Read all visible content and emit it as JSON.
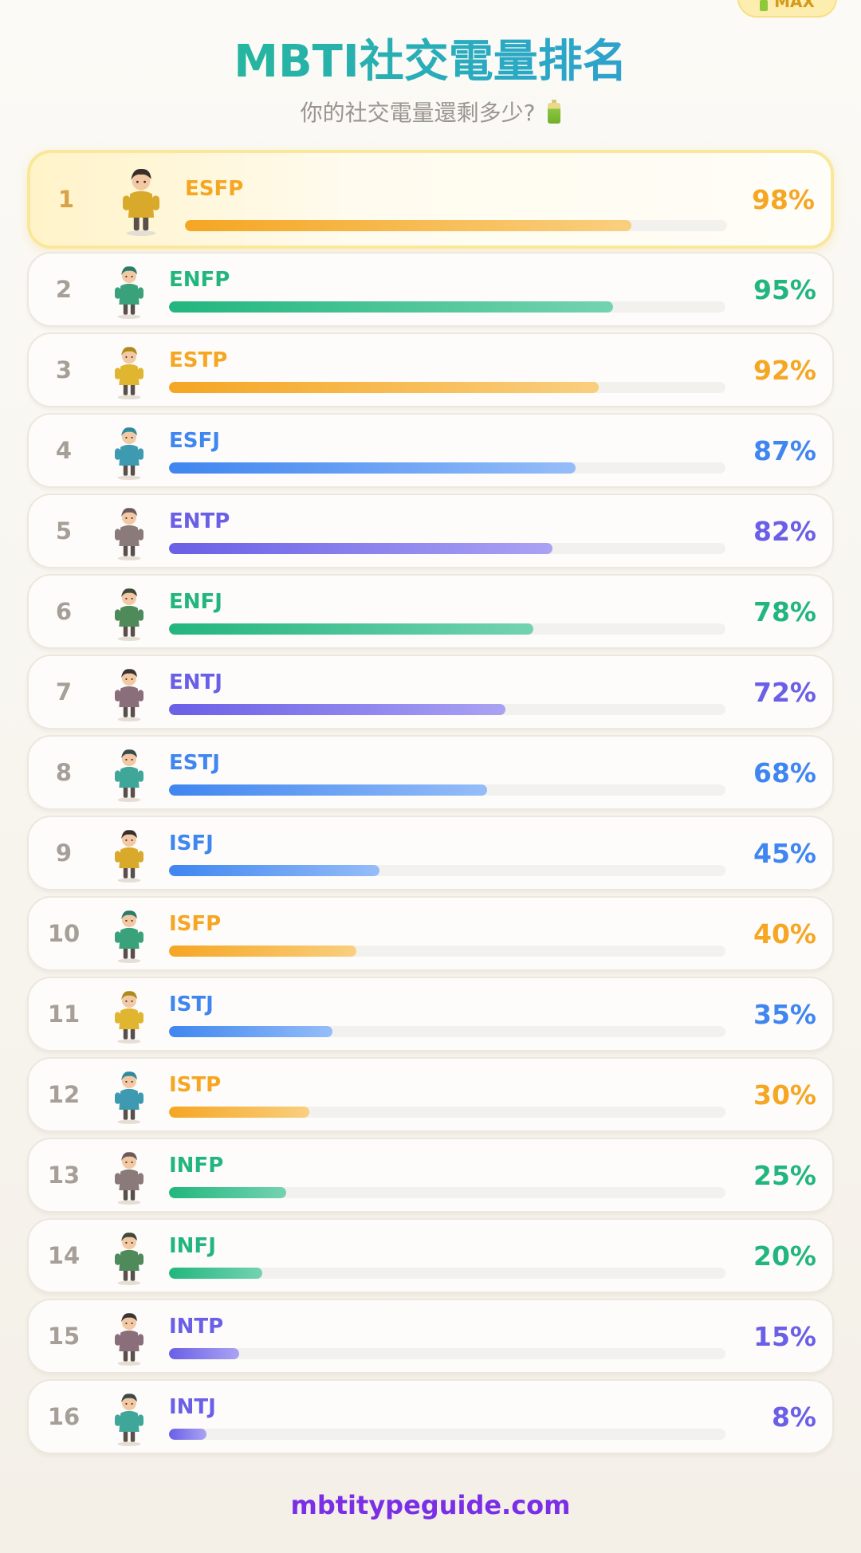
{
  "badge": {
    "label": "MAX"
  },
  "header": {
    "title": "MBTI社交電量排名",
    "subtitle": "你的社交電量還剩多少?"
  },
  "colors": {
    "orange": "#f5a623",
    "green": "#22b67e",
    "blue": "#3f86f0",
    "purple": "#6a5fe6"
  },
  "chart_data": {
    "type": "bar",
    "title": "MBTI社交電量排名",
    "subtitle": "你的社交電量還剩多少?",
    "unit": "%",
    "xlim": [
      0,
      100
    ],
    "rows": [
      {
        "rank": "1",
        "type": "ESFP",
        "value": 98,
        "label": "98%",
        "color": "orange"
      },
      {
        "rank": "2",
        "type": "ENFP",
        "value": 95,
        "label": "95%",
        "color": "green"
      },
      {
        "rank": "3",
        "type": "ESTP",
        "value": 92,
        "label": "92%",
        "color": "orange"
      },
      {
        "rank": "4",
        "type": "ESFJ",
        "value": 87,
        "label": "87%",
        "color": "blue"
      },
      {
        "rank": "5",
        "type": "ENTP",
        "value": 82,
        "label": "82%",
        "color": "purple"
      },
      {
        "rank": "6",
        "type": "ENFJ",
        "value": 78,
        "label": "78%",
        "color": "green"
      },
      {
        "rank": "7",
        "type": "ENTJ",
        "value": 72,
        "label": "72%",
        "color": "purple"
      },
      {
        "rank": "8",
        "type": "ESTJ",
        "value": 68,
        "label": "68%",
        "color": "blue"
      },
      {
        "rank": "9",
        "type": "ISFJ",
        "value": 45,
        "label": "45%",
        "color": "blue"
      },
      {
        "rank": "10",
        "type": "ISFP",
        "value": 40,
        "label": "40%",
        "color": "orange"
      },
      {
        "rank": "11",
        "type": "ISTJ",
        "value": 35,
        "label": "35%",
        "color": "blue"
      },
      {
        "rank": "12",
        "type": "ISTP",
        "value": 30,
        "label": "30%",
        "color": "orange"
      },
      {
        "rank": "13",
        "type": "INFP",
        "value": 25,
        "label": "25%",
        "color": "green"
      },
      {
        "rank": "14",
        "type": "INFJ",
        "value": 20,
        "label": "20%",
        "color": "green"
      },
      {
        "rank": "15",
        "type": "INTP",
        "value": 15,
        "label": "15%",
        "color": "purple"
      },
      {
        "rank": "16",
        "type": "INTJ",
        "value": 8,
        "label": "8%",
        "color": "purple"
      }
    ]
  },
  "footer": {
    "site": "mbtitypeguide.com"
  }
}
